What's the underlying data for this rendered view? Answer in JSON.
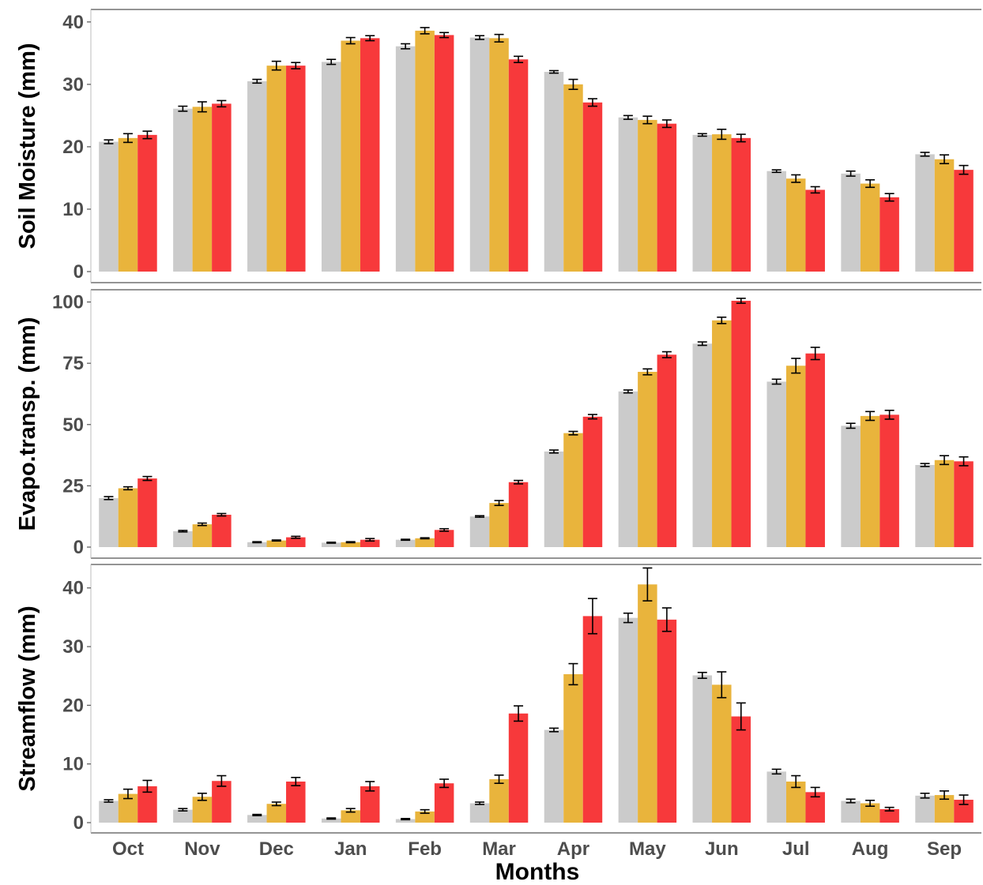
{
  "chart_data": {
    "type": "bar",
    "xlabel": "Months",
    "categories": [
      "Oct",
      "Nov",
      "Dec",
      "Jan",
      "Feb",
      "Mar",
      "Apr",
      "May",
      "Jun",
      "Jul",
      "Aug",
      "Sep"
    ],
    "series_colors": [
      "#cbcbcb",
      "#e9b43c",
      "#f7393b"
    ],
    "panels": [
      {
        "ylabel": "Soil Moisture (mm)",
        "ylim": [
          0,
          42
        ],
        "yticks": [
          0,
          10,
          20,
          30,
          40
        ],
        "series": [
          {
            "values": [
              20.8,
              26.1,
              30.5,
              33.6,
              36.1,
              37.5,
              32.0,
              24.7,
              21.9,
              16.1,
              15.7,
              18.8
            ],
            "errors": [
              0.3,
              0.4,
              0.3,
              0.4,
              0.4,
              0.3,
              0.2,
              0.3,
              0.2,
              0.2,
              0.4,
              0.3
            ]
          },
          {
            "values": [
              21.4,
              26.4,
              33.0,
              37.0,
              38.6,
              37.4,
              30.0,
              24.3,
              22.0,
              14.9,
              14.1,
              18.0
            ],
            "errors": [
              0.7,
              0.8,
              0.7,
              0.5,
              0.5,
              0.6,
              0.8,
              0.6,
              0.8,
              0.6,
              0.6,
              0.7
            ]
          },
          {
            "values": [
              21.9,
              26.9,
              33.0,
              37.4,
              37.9,
              34.0,
              27.1,
              23.7,
              21.4,
              13.1,
              11.9,
              16.3
            ],
            "errors": [
              0.6,
              0.5,
              0.5,
              0.4,
              0.4,
              0.5,
              0.6,
              0.6,
              0.6,
              0.5,
              0.6,
              0.7
            ]
          }
        ]
      },
      {
        "ylabel": "Evapo.transp. (mm)",
        "ylim": [
          0,
          105
        ],
        "yticks": [
          0,
          25,
          50,
          75,
          100
        ],
        "series": [
          {
            "values": [
              20.0,
              6.5,
              2.0,
              1.8,
              3.0,
              12.5,
              39.0,
              63.5,
              83.0,
              67.5,
              49.5,
              33.5
            ],
            "errors": [
              0.6,
              0.3,
              0.2,
              0.2,
              0.2,
              0.3,
              0.6,
              0.6,
              0.7,
              1.0,
              1.0,
              0.6
            ]
          },
          {
            "values": [
              24.0,
              9.3,
              2.7,
              2.0,
              3.6,
              18.0,
              46.5,
              71.5,
              92.5,
              74.0,
              53.5,
              35.5
            ],
            "errors": [
              0.6,
              0.5,
              0.2,
              0.2,
              0.2,
              1.0,
              0.7,
              1.2,
              1.3,
              3.0,
              1.8,
              1.8
            ]
          },
          {
            "values": [
              28.0,
              13.2,
              4.0,
              3.0,
              7.0,
              26.5,
              53.2,
              78.5,
              100.5,
              79.0,
              54.0,
              35.0
            ],
            "errors": [
              0.8,
              0.5,
              0.4,
              0.5,
              0.5,
              0.7,
              0.9,
              1.2,
              1.0,
              2.5,
              1.8,
              1.8
            ]
          }
        ]
      },
      {
        "ylabel": "Streamflow (mm)",
        "ylim": [
          0,
          44
        ],
        "yticks": [
          0,
          10,
          20,
          30,
          40
        ],
        "series": [
          {
            "values": [
              3.7,
              2.2,
              1.3,
              0.7,
              0.6,
              3.3,
              15.8,
              34.9,
              25.1,
              8.7,
              3.7,
              4.6
            ],
            "errors": [
              0.2,
              0.2,
              0.1,
              0.1,
              0.1,
              0.2,
              0.3,
              0.8,
              0.5,
              0.4,
              0.3,
              0.4
            ]
          },
          {
            "values": [
              4.9,
              4.4,
              3.2,
              2.1,
              1.9,
              7.4,
              25.3,
              40.6,
              23.5,
              7.0,
              3.3,
              4.7
            ],
            "errors": [
              0.8,
              0.6,
              0.3,
              0.3,
              0.3,
              0.7,
              1.8,
              2.8,
              2.2,
              1.0,
              0.5,
              0.7
            ]
          },
          {
            "values": [
              6.2,
              7.1,
              7.0,
              6.2,
              6.7,
              18.6,
              35.2,
              34.6,
              18.1,
              5.2,
              2.3,
              3.9
            ],
            "errors": [
              1.0,
              0.9,
              0.7,
              0.8,
              0.7,
              1.3,
              3.0,
              2.0,
              2.3,
              0.8,
              0.3,
              0.8
            ]
          }
        ]
      }
    ]
  }
}
